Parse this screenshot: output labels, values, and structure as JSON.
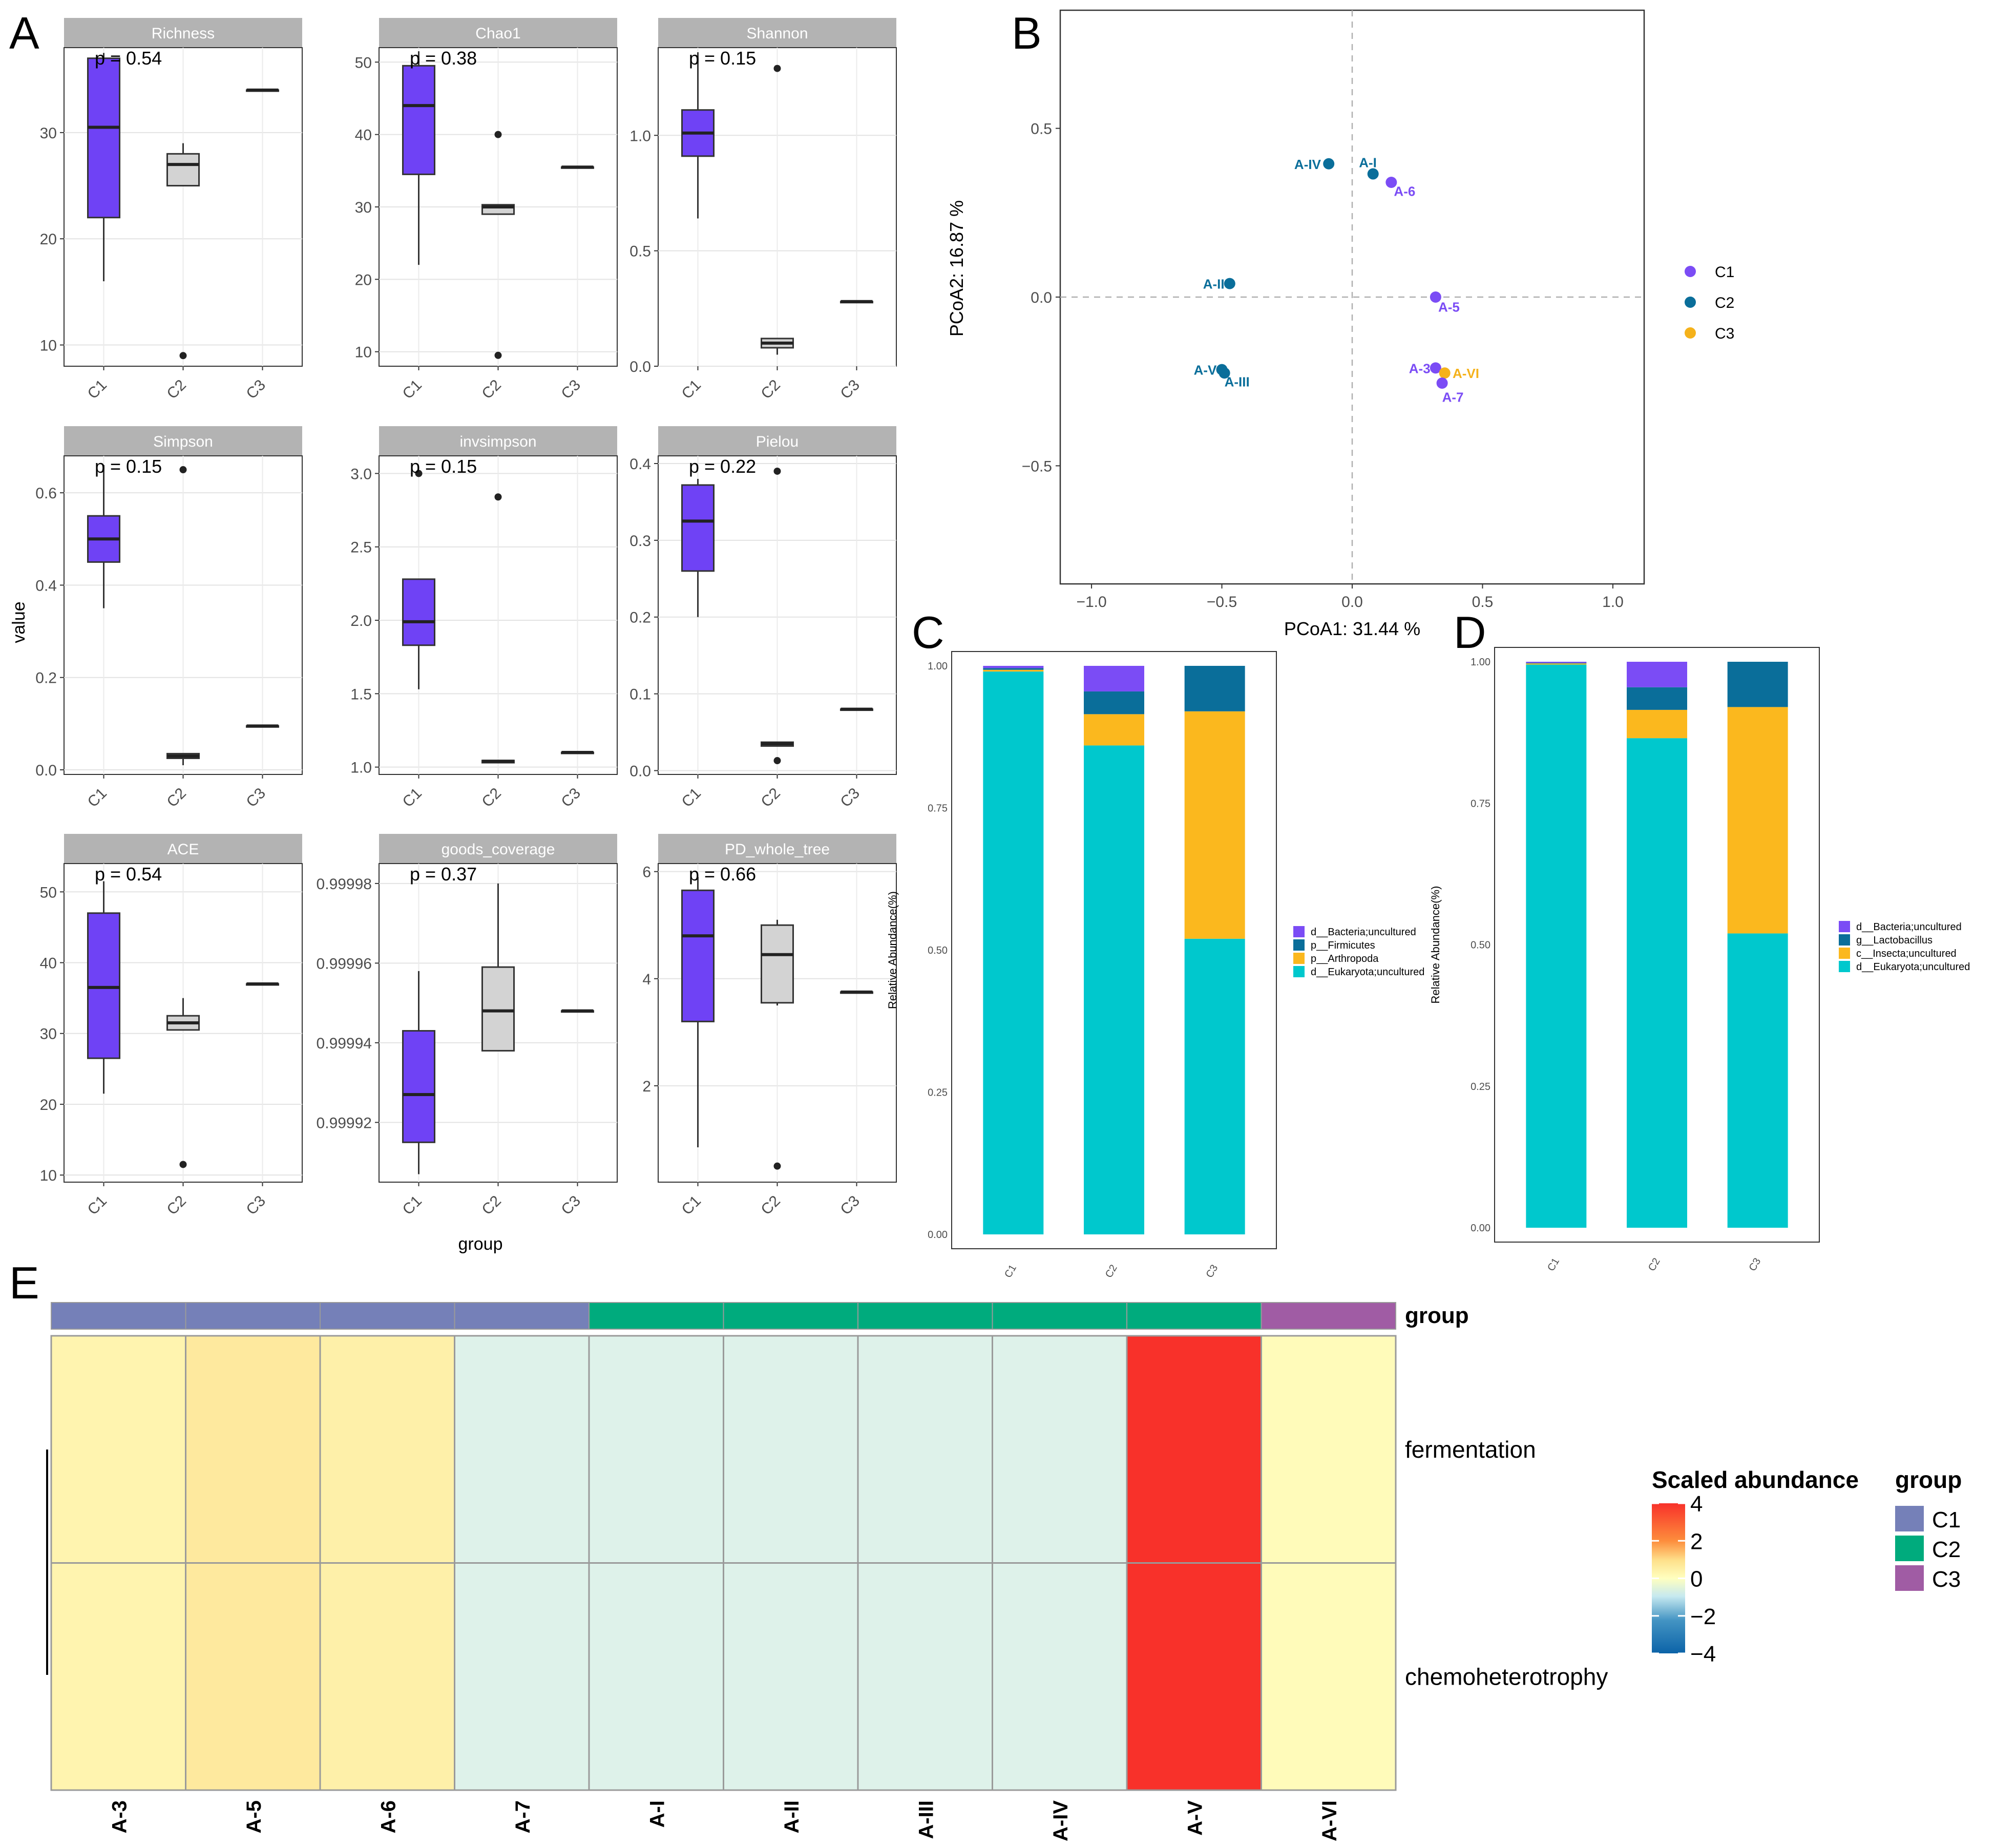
{
  "panel_letters": {
    "a": "A",
    "b": "B",
    "c": "C",
    "d": "D",
    "e": "E"
  },
  "colors": {
    "c1_box": "#6f42f5",
    "c2_box": "#d3d3d3",
    "strip": "#b3b3b3",
    "pcoa_c1": "#7b4cf5",
    "pcoa_c2": "#0a6e9a",
    "pcoa_c3": "#f5b21b",
    "bar_bacteria": "#7b4cf5",
    "bar_firmicutes": "#0a6e9a",
    "bar_arthropoda": "#fbb81e",
    "bar_eukaryota": "#00c8cd",
    "hm_group_c1": "#7580b8",
    "hm_group_c2": "#00ab7d",
    "hm_group_c3": "#a05ca4"
  },
  "panel_a": {
    "y_label": "value",
    "x_label": "group",
    "groups": [
      "C1",
      "C2",
      "C3"
    ]
  },
  "chart_data": [
    {
      "type": "box",
      "panel": "A",
      "id": "richness",
      "title": "Richness",
      "pvalue": "p = 0.54",
      "ylim": [
        8,
        38
      ],
      "yticks": [
        10,
        20,
        30
      ],
      "ytick_labels": [
        "10",
        "20",
        "30"
      ],
      "categories": [
        "C1",
        "C2",
        "C3"
      ],
      "boxes": [
        {
          "group": "C1",
          "min": 16,
          "q1": 22,
          "median": 30.5,
          "q3": 37,
          "max": 37.5,
          "outliers": []
        },
        {
          "group": "C2",
          "min": 25,
          "q1": 25,
          "median": 27,
          "q3": 28,
          "max": 29,
          "outliers": [
            9
          ]
        },
        {
          "group": "C3",
          "min": 34,
          "q1": 34,
          "median": 34,
          "q3": 34,
          "max": 34,
          "outliers": []
        }
      ]
    },
    {
      "type": "box",
      "panel": "A",
      "id": "chao1",
      "title": "Chao1",
      "pvalue": "p = 0.38",
      "ylim": [
        8,
        52
      ],
      "yticks": [
        10,
        20,
        30,
        40,
        50
      ],
      "ytick_labels": [
        "10",
        "20",
        "30",
        "40",
        "50"
      ],
      "categories": [
        "C1",
        "C2",
        "C3"
      ],
      "boxes": [
        {
          "group": "C1",
          "min": 22,
          "q1": 34.5,
          "median": 44,
          "q3": 49.5,
          "max": 51.5,
          "outliers": []
        },
        {
          "group": "C2",
          "min": 29,
          "q1": 29,
          "median": 30,
          "q3": 30.3,
          "max": 30.3,
          "outliers": [
            40,
            9.5
          ]
        },
        {
          "group": "C3",
          "min": 35.5,
          "q1": 35.5,
          "median": 35.5,
          "q3": 35.5,
          "max": 35.5,
          "outliers": []
        }
      ]
    },
    {
      "type": "box",
      "panel": "A",
      "id": "shannon",
      "title": "Shannon",
      "pvalue": "p = 0.15",
      "ylim": [
        0,
        1.38
      ],
      "yticks": [
        0.0,
        0.5,
        1.0
      ],
      "ytick_labels": [
        "0.0",
        "0.5",
        "1.0"
      ],
      "categories": [
        "C1",
        "C2",
        "C3"
      ],
      "boxes": [
        {
          "group": "C1",
          "min": 0.64,
          "q1": 0.91,
          "median": 1.01,
          "q3": 1.11,
          "max": 1.36,
          "outliers": []
        },
        {
          "group": "C2",
          "min": 0.05,
          "q1": 0.08,
          "median": 0.1,
          "q3": 0.12,
          "max": 0.12,
          "outliers": [
            1.29
          ]
        },
        {
          "group": "C3",
          "min": 0.28,
          "q1": 0.28,
          "median": 0.28,
          "q3": 0.28,
          "max": 0.28,
          "outliers": []
        }
      ]
    },
    {
      "type": "box",
      "panel": "A",
      "id": "simpson",
      "title": "Simpson",
      "pvalue": "p = 0.15",
      "ylim": [
        -0.01,
        0.68
      ],
      "yticks": [
        0.0,
        0.2,
        0.4,
        0.6
      ],
      "ytick_labels": [
        "0.0",
        "0.2",
        "0.4",
        "0.6"
      ],
      "categories": [
        "C1",
        "C2",
        "C3"
      ],
      "boxes": [
        {
          "group": "C1",
          "min": 0.35,
          "q1": 0.45,
          "median": 0.5,
          "q3": 0.55,
          "max": 0.66,
          "outliers": []
        },
        {
          "group": "C2",
          "min": 0.01,
          "q1": 0.025,
          "median": 0.03,
          "q3": 0.035,
          "max": 0.035,
          "outliers": [
            0.65
          ]
        },
        {
          "group": "C3",
          "min": 0.095,
          "q1": 0.095,
          "median": 0.095,
          "q3": 0.095,
          "max": 0.095,
          "outliers": []
        }
      ]
    },
    {
      "type": "box",
      "panel": "A",
      "id": "invsimpson",
      "title": "invsimpson",
      "pvalue": "p = 0.15",
      "ylim": [
        0.95,
        3.12
      ],
      "yticks": [
        1.0,
        1.5,
        2.0,
        2.5,
        3.0
      ],
      "ytick_labels": [
        "1.0",
        "1.5",
        "2.0",
        "2.5",
        "3.0"
      ],
      "categories": [
        "C1",
        "C2",
        "C3"
      ],
      "boxes": [
        {
          "group": "C1",
          "min": 1.53,
          "q1": 1.83,
          "median": 1.99,
          "q3": 2.28,
          "max": 2.28,
          "outliers": [
            3.0
          ]
        },
        {
          "group": "C2",
          "min": 1.03,
          "q1": 1.03,
          "median": 1.04,
          "q3": 1.045,
          "max": 1.045,
          "outliers": [
            2.84
          ]
        },
        {
          "group": "C3",
          "min": 1.1,
          "q1": 1.1,
          "median": 1.1,
          "q3": 1.1,
          "max": 1.1,
          "outliers": []
        }
      ]
    },
    {
      "type": "box",
      "panel": "A",
      "id": "pielou",
      "title": "Pielou",
      "pvalue": "p = 0.22",
      "ylim": [
        -0.005,
        0.41
      ],
      "yticks": [
        0.0,
        0.1,
        0.2,
        0.3,
        0.4
      ],
      "ytick_labels": [
        "0.0",
        "0.1",
        "0.2",
        "0.3",
        "0.4"
      ],
      "categories": [
        "C1",
        "C2",
        "C3"
      ],
      "boxes": [
        {
          "group": "C1",
          "min": 0.2,
          "q1": 0.26,
          "median": 0.325,
          "q3": 0.372,
          "max": 0.38,
          "outliers": []
        },
        {
          "group": "C2",
          "min": 0.032,
          "q1": 0.032,
          "median": 0.035,
          "q3": 0.037,
          "max": 0.037,
          "outliers": [
            0.39,
            0.013
          ]
        },
        {
          "group": "C3",
          "min": 0.08,
          "q1": 0.08,
          "median": 0.08,
          "q3": 0.08,
          "max": 0.08,
          "outliers": []
        }
      ]
    },
    {
      "type": "box",
      "panel": "A",
      "id": "ace",
      "title": "ACE",
      "pvalue": "p = 0.54",
      "ylim": [
        9,
        54
      ],
      "yticks": [
        10,
        20,
        30,
        40,
        50
      ],
      "ytick_labels": [
        "10",
        "20",
        "30",
        "40",
        "50"
      ],
      "categories": [
        "C1",
        "C2",
        "C3"
      ],
      "boxes": [
        {
          "group": "C1",
          "min": 21.5,
          "q1": 26.5,
          "median": 36.5,
          "q3": 47,
          "max": 51.5,
          "outliers": []
        },
        {
          "group": "C2",
          "min": 30.5,
          "q1": 30.5,
          "median": 31.5,
          "q3": 32.5,
          "max": 35,
          "outliers": [
            11.5
          ]
        },
        {
          "group": "C3",
          "min": 37,
          "q1": 37,
          "median": 37,
          "q3": 37,
          "max": 37,
          "outliers": []
        }
      ]
    },
    {
      "type": "box",
      "panel": "A",
      "id": "goods_coverage",
      "title": "goods_coverage",
      "pvalue": "p = 0.37",
      "ylim": [
        0.999905,
        0.999985
      ],
      "yticks": [
        0.99992,
        0.99994,
        0.99996,
        0.99998
      ],
      "ytick_labels": [
        "0.99992",
        "0.99994",
        "0.99996",
        "0.99998"
      ],
      "categories": [
        "C1",
        "C2",
        "C3"
      ],
      "boxes": [
        {
          "group": "C1",
          "min": 0.999907,
          "q1": 0.999915,
          "median": 0.999927,
          "q3": 0.999943,
          "max": 0.999958,
          "outliers": []
        },
        {
          "group": "C2",
          "min": 0.999938,
          "q1": 0.999938,
          "median": 0.999948,
          "q3": 0.999959,
          "max": 0.99998,
          "outliers": []
        },
        {
          "group": "C3",
          "min": 0.999948,
          "q1": 0.999948,
          "median": 0.999948,
          "q3": 0.999948,
          "max": 0.999948,
          "outliers": []
        }
      ]
    },
    {
      "type": "box",
      "panel": "A",
      "id": "pd_whole_tree",
      "title": "PD_whole_tree",
      "pvalue": "p = 0.66",
      "ylim": [
        0.2,
        6.15
      ],
      "yticks": [
        2,
        4,
        6
      ],
      "ytick_labels": [
        "2",
        "4",
        "6"
      ],
      "categories": [
        "C1",
        "C2",
        "C3"
      ],
      "boxes": [
        {
          "group": "C1",
          "min": 0.85,
          "q1": 3.2,
          "median": 4.8,
          "q3": 5.65,
          "max": 5.9,
          "outliers": []
        },
        {
          "group": "C2",
          "min": 3.5,
          "q1": 3.55,
          "median": 4.45,
          "q3": 5.0,
          "max": 5.1,
          "outliers": [
            0.5
          ]
        },
        {
          "group": "C3",
          "min": 3.75,
          "q1": 3.75,
          "median": 3.75,
          "q3": 3.75,
          "max": 3.75,
          "outliers": []
        }
      ]
    },
    {
      "type": "scatter",
      "panel": "B",
      "id": "pcoa",
      "xlabel": "PCoA1:  31.44 %",
      "ylabel": "PCoA2:  16.87 %",
      "xlim": [
        -1.12,
        1.12
      ],
      "ylim": [
        -0.85,
        0.85
      ],
      "xticks": [
        -1.0,
        -0.5,
        0.0,
        0.5,
        1.0
      ],
      "xtick_labels": [
        "−1.0",
        "−0.5",
        "0.0",
        "0.5",
        "1.0"
      ],
      "yticks": [
        -0.5,
        0.0,
        0.5
      ],
      "ytick_labels": [
        "−0.5",
        "0.0",
        "0.5"
      ],
      "legend": [
        {
          "label": "C1",
          "color_key": "pcoa_c1"
        },
        {
          "label": "C2",
          "color_key": "pcoa_c2"
        },
        {
          "label": "C3",
          "color_key": "pcoa_c3"
        }
      ],
      "points": [
        {
          "label": "A-IV",
          "x": -0.09,
          "y": 0.395,
          "group": "C2",
          "anchor": "end",
          "dx": -0.03,
          "dy": 0.0
        },
        {
          "label": "A-I",
          "x": 0.08,
          "y": 0.365,
          "group": "C2",
          "anchor": "middle",
          "dx": -0.02,
          "dy": 0.035
        },
        {
          "label": "A-6",
          "x": 0.15,
          "y": 0.34,
          "group": "C1",
          "anchor": "start",
          "dx": 0.01,
          "dy": -0.025
        },
        {
          "label": "A-II",
          "x": -0.47,
          "y": 0.04,
          "group": "C2",
          "anchor": "end",
          "dx": -0.02,
          "dy": 0.0
        },
        {
          "label": "A-5",
          "x": 0.32,
          "y": 0.0,
          "group": "C1",
          "anchor": "start",
          "dx": 0.01,
          "dy": -0.028
        },
        {
          "label": "A-V",
          "x": -0.5,
          "y": -0.215,
          "group": "C2",
          "anchor": "end",
          "dx": -0.02,
          "dy": 0.0
        },
        {
          "label": "A-III",
          "x": -0.49,
          "y": -0.225,
          "group": "C2",
          "anchor": "start",
          "dx": 0.0,
          "dy": -0.025
        },
        {
          "label": "A-3",
          "x": 0.32,
          "y": -0.21,
          "group": "C1",
          "anchor": "end",
          "dx": -0.02,
          "dy": 0.0
        },
        {
          "label": "A-VI",
          "x": 0.355,
          "y": -0.225,
          "group": "C3",
          "anchor": "start",
          "dx": 0.03,
          "dy": 0.0
        },
        {
          "label": "A-7",
          "x": 0.345,
          "y": -0.255,
          "group": "C1",
          "anchor": "start",
          "dx": 0.0,
          "dy": -0.04
        }
      ]
    },
    {
      "type": "stacked_bar",
      "panel": "C",
      "id": "phylum",
      "ylabel": "Relative Abundance(%)",
      "ylim": [
        0,
        1.0
      ],
      "yticks": [
        0.0,
        0.25,
        0.5,
        0.75,
        1.0
      ],
      "ytick_labels": [
        "0.00",
        "0.25",
        "0.50",
        "0.75",
        "1.00"
      ],
      "categories": [
        "C1",
        "C2",
        "C3"
      ],
      "series": [
        {
          "name": "d__Eukaryota;uncultured",
          "color_key": "bar_eukaryota",
          "values": [
            0.99,
            0.86,
            0.52
          ]
        },
        {
          "name": "p__Arthropoda",
          "color_key": "bar_arthropoda",
          "values": [
            0.003,
            0.055,
            0.4
          ]
        },
        {
          "name": "p__Firmicutes",
          "color_key": "bar_firmicutes",
          "values": [
            0.003,
            0.04,
            0.08
          ]
        },
        {
          "name": "d__Bacteria;uncultured",
          "color_key": "bar_bacteria",
          "values": [
            0.004,
            0.045,
            0.0
          ]
        }
      ],
      "legend_order": [
        "d__Bacteria;uncultured",
        "p__Firmicutes",
        "p__Arthropoda",
        "d__Eukaryota;uncultured"
      ]
    },
    {
      "type": "stacked_bar",
      "panel": "D",
      "id": "genus",
      "ylabel": "Relative Abundance(%)",
      "ylim": [
        0,
        1.0
      ],
      "yticks": [
        0.0,
        0.25,
        0.5,
        0.75,
        1.0
      ],
      "ytick_labels": [
        "0.00",
        "0.25",
        "0.50",
        "0.75",
        "1.00"
      ],
      "categories": [
        "C1",
        "C2",
        "C3"
      ],
      "series": [
        {
          "name": "d__Eukaryota;uncultured",
          "color_key": "bar_eukaryota",
          "values": [
            0.995,
            0.865,
            0.52
          ]
        },
        {
          "name": "c__Insecta;uncultured",
          "color_key": "bar_arthropoda",
          "values": [
            0.002,
            0.05,
            0.4
          ]
        },
        {
          "name": "g__Lactobacillus",
          "color_key": "bar_firmicutes",
          "values": [
            0.001,
            0.04,
            0.08
          ]
        },
        {
          "name": "d__Bacteria;uncultured",
          "color_key": "bar_bacteria",
          "values": [
            0.002,
            0.045,
            0.0
          ]
        }
      ],
      "legend_order": [
        "d__Bacteria;uncultured",
        "g__Lactobacillus",
        "c__Insecta;uncultured",
        "d__Eukaryota;uncultured"
      ]
    },
    {
      "type": "heatmap",
      "panel": "E",
      "id": "function_heatmap",
      "columns": [
        "A-3",
        "A-5",
        "A-6",
        "A-7",
        "A-I",
        "A-II",
        "A-III",
        "A-IV",
        "A-V",
        "A-VI"
      ],
      "column_groups": [
        "C1",
        "C1",
        "C1",
        "C1",
        "C2",
        "C2",
        "C2",
        "C2",
        "C2",
        "C3"
      ],
      "rows": [
        "fermentation",
        "chemoheterotrophy"
      ],
      "values": [
        [
          0.3,
          0.6,
          0.4,
          -0.4,
          -0.4,
          -0.4,
          -0.4,
          -0.4,
          3.9,
          0.1
        ],
        [
          0.3,
          0.6,
          0.4,
          -0.4,
          -0.4,
          -0.4,
          -0.4,
          -0.4,
          3.9,
          0.1
        ]
      ],
      "group_annotation_label": "group",
      "colorbar_title": "Scaled abundance",
      "colorbar_range": [
        -4,
        4
      ],
      "colorbar_ticks": [
        4,
        2,
        0,
        -2,
        -4
      ],
      "colorbar_tick_labels": [
        "4",
        "2",
        "0",
        "−2",
        "−4"
      ],
      "group_legend_title": "group",
      "group_legend": [
        {
          "label": "C1",
          "color_key": "hm_group_c1"
        },
        {
          "label": "C2",
          "color_key": "hm_group_c2"
        },
        {
          "label": "C3",
          "color_key": "hm_group_c3"
        }
      ]
    }
  ]
}
